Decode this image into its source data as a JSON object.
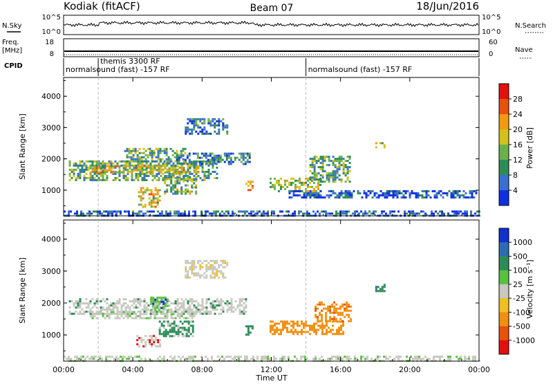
{
  "header": {
    "station": "Kodiak (fitACF)",
    "beam": "Beam 07",
    "date": "18/Jun/2016"
  },
  "strips": {
    "nsky_label": "N.Sky",
    "nsky_ticks": [
      "10^5",
      "10^0"
    ],
    "nsearch_label": "N.Search",
    "nsearch_ticks": [
      "10^5",
      "10^0"
    ],
    "freq_label_1": "Freq.",
    "freq_label_2": "[MHz]",
    "freq_ticks": [
      "18",
      "8"
    ],
    "nave_label": "Nave",
    "nave_ticks": [
      "60",
      "0"
    ],
    "cpid_label": "CPID",
    "cpid_entries": [
      {
        "text": "normalsound (fast) -157 RF",
        "start_hour": 0
      },
      {
        "text": "themis 3300 RF",
        "start_hour": 2
      },
      {
        "text": "normalsound (fast) -157 RF",
        "start_hour": 14
      }
    ]
  },
  "chart_data": [
    {
      "type": "heatmap",
      "name": "power",
      "ylabel": "Slant Range [km]",
      "xlabel": "Time UT",
      "x_ticks": [
        "00:00",
        "04:00",
        "08:00",
        "12:00",
        "16:00",
        "20:00",
        "00:00"
      ],
      "xlim_hours": [
        0,
        24
      ],
      "y_ticks": [
        "1000",
        "2000",
        "3000",
        "4000"
      ],
      "ylim_km": [
        180,
        4600
      ],
      "colorbar_label": "Power [dB]",
      "colorbar_ticks": [
        "4",
        "8",
        "12",
        "16",
        "20",
        "24",
        "28"
      ],
      "colorbar_colors": [
        "#1030e0",
        "#3a6fd0",
        "#2e8b57",
        "#6ab04c",
        "#d4c01a",
        "#f09a10",
        "#e85010",
        "#e01010"
      ],
      "echo_regions": [
        {
          "t0": 0.3,
          "t1": 8.9,
          "r0": 1350,
          "r1": 1950,
          "level": 0.35
        },
        {
          "t0": 1.5,
          "t1": 7.8,
          "r0": 1550,
          "r1": 1800,
          "level": 0.55
        },
        {
          "t0": 3.5,
          "t1": 7.0,
          "r0": 1950,
          "r1": 2350,
          "level": 0.35
        },
        {
          "t0": 6.5,
          "t1": 10.8,
          "r0": 1850,
          "r1": 2200,
          "level": 0.25
        },
        {
          "t0": 5.8,
          "t1": 7.6,
          "r0": 900,
          "r1": 1450,
          "level": 0.4
        },
        {
          "t0": 7.0,
          "t1": 9.4,
          "r0": 2800,
          "r1": 3300,
          "level": 0.2
        },
        {
          "t0": 11.9,
          "t1": 14.8,
          "r0": 1000,
          "r1": 1400,
          "level": 0.5
        },
        {
          "t0": 14.2,
          "t1": 16.5,
          "r0": 1300,
          "r1": 2100,
          "level": 0.35
        },
        {
          "t0": 4.3,
          "t1": 5.6,
          "r0": 450,
          "r1": 1100,
          "level": 0.55
        },
        {
          "t0": 13.0,
          "t1": 23.9,
          "r0": 750,
          "r1": 1000,
          "level": 0.1
        },
        {
          "t0": 0.0,
          "t1": 24.0,
          "r0": 180,
          "r1": 350,
          "level": 0.15
        },
        {
          "t0": 18.0,
          "t1": 18.5,
          "r0": 2350,
          "r1": 2600,
          "level": 0.5
        },
        {
          "t0": 10.5,
          "t1": 10.9,
          "r0": 1000,
          "r1": 1300,
          "level": 0.7
        }
      ]
    },
    {
      "type": "heatmap",
      "name": "velocity",
      "ylabel": "Slant Range [km]",
      "xlabel": "Time UT",
      "x_ticks": [
        "00:00",
        "04:00",
        "08:00",
        "12:00",
        "16:00",
        "20:00",
        "00:00"
      ],
      "xlim_hours": [
        0,
        24
      ],
      "y_ticks": [
        "1000",
        "2000",
        "3000",
        "4000"
      ],
      "ylim_km": [
        180,
        4600
      ],
      "colorbar_label": "Velocity [m s⁻¹]",
      "colorbar_ticks": [
        "1000",
        "500",
        "100",
        "25",
        "-25",
        "-100",
        "-500",
        "-1000"
      ],
      "colorbar_colors": [
        "#1030d0",
        "#2e6cb0",
        "#2e8b57",
        "#5ac040",
        "#c8c8c0",
        "#f0c020",
        "#f09010",
        "#e85010",
        "#e01010"
      ],
      "echo_regions": [
        {
          "t0": 0.3,
          "t1": 10.5,
          "r0": 1650,
          "r1": 2150,
          "color": "#c8c8c0"
        },
        {
          "t0": 1.5,
          "t1": 7.5,
          "r0": 1500,
          "r1": 1750,
          "color": "#c8c8c0"
        },
        {
          "t0": 5.5,
          "t1": 7.5,
          "r0": 950,
          "r1": 1450,
          "color": "#2e8b57"
        },
        {
          "t0": 7.0,
          "t1": 9.4,
          "r0": 2800,
          "r1": 3350,
          "color": "#c8c8c0"
        },
        {
          "t0": 11.9,
          "t1": 16.2,
          "r0": 1000,
          "r1": 1450,
          "color": "#f09010"
        },
        {
          "t0": 14.5,
          "t1": 16.6,
          "r0": 1400,
          "r1": 2050,
          "color": "#f09010"
        },
        {
          "t0": 4.2,
          "t1": 5.6,
          "r0": 650,
          "r1": 1000,
          "color": "#c8c8c0"
        },
        {
          "t0": 5.0,
          "t1": 6.0,
          "r0": 1800,
          "r1": 2200,
          "color": "#5ac040"
        },
        {
          "t0": 18.0,
          "t1": 18.5,
          "r0": 2350,
          "r1": 2600,
          "color": "#2e8b57"
        },
        {
          "t0": 10.5,
          "t1": 10.9,
          "r0": 1000,
          "r1": 1300,
          "color": "#2e8b57"
        },
        {
          "t0": 0.0,
          "t1": 24.0,
          "r0": 180,
          "r1": 350,
          "color": "#c8c8c0"
        }
      ]
    }
  ]
}
